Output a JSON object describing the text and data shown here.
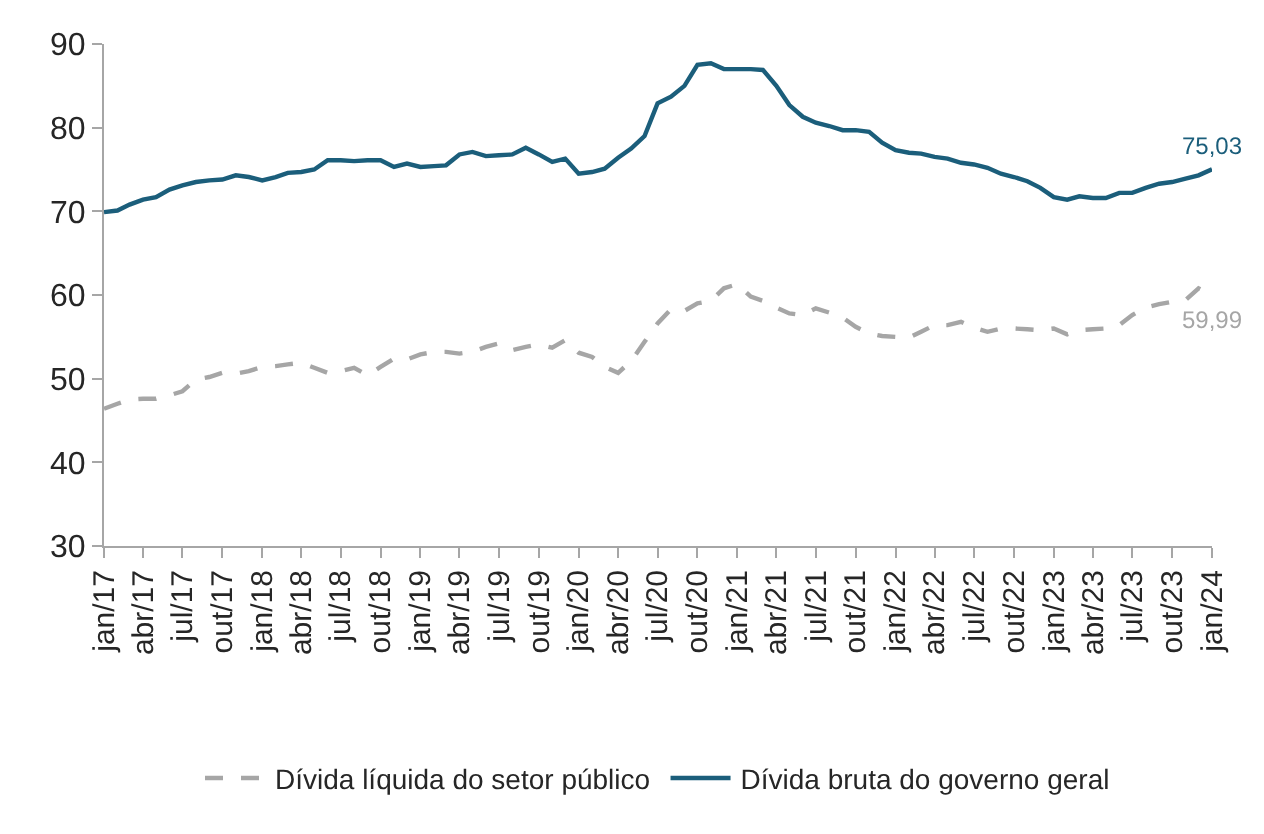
{
  "chart_data": {
    "type": "line",
    "x": [
      "2017-01",
      "2017-02",
      "2017-03",
      "2017-04",
      "2017-05",
      "2017-06",
      "2017-07",
      "2017-08",
      "2017-09",
      "2017-10",
      "2017-11",
      "2017-12",
      "2018-01",
      "2018-02",
      "2018-03",
      "2018-04",
      "2018-05",
      "2018-06",
      "2018-07",
      "2018-08",
      "2018-09",
      "2018-10",
      "2018-11",
      "2018-12",
      "2019-01",
      "2019-02",
      "2019-03",
      "2019-04",
      "2019-05",
      "2019-06",
      "2019-07",
      "2019-08",
      "2019-09",
      "2019-10",
      "2019-11",
      "2019-12",
      "2020-01",
      "2020-02",
      "2020-03",
      "2020-04",
      "2020-05",
      "2020-06",
      "2020-07",
      "2020-08",
      "2020-09",
      "2020-10",
      "2020-11",
      "2020-12",
      "2021-01",
      "2021-02",
      "2021-03",
      "2021-04",
      "2021-05",
      "2021-06",
      "2021-07",
      "2021-08",
      "2021-09",
      "2021-10",
      "2021-11",
      "2021-12",
      "2022-01",
      "2022-02",
      "2022-03",
      "2022-04",
      "2022-05",
      "2022-06",
      "2022-07",
      "2022-08",
      "2022-09",
      "2022-10",
      "2022-11",
      "2022-12",
      "2023-01",
      "2023-02",
      "2023-03",
      "2023-04",
      "2023-05",
      "2023-06",
      "2023-07",
      "2023-08",
      "2023-09",
      "2023-10",
      "2023-11",
      "2023-12",
      "2024-01"
    ],
    "series": [
      {
        "name": "Dívida líquida do setor público",
        "color": "#a6a6a6",
        "line_style": "dashed",
        "values": [
          46.4,
          47.0,
          47.5,
          47.6,
          47.6,
          48.0,
          48.5,
          49.9,
          50.2,
          50.7,
          50.6,
          50.9,
          51.4,
          51.5,
          51.7,
          51.9,
          51.3,
          50.7,
          50.9,
          51.3,
          50.4,
          51.4,
          52.4,
          52.3,
          52.9,
          53.2,
          53.2,
          53.0,
          53.2,
          53.8,
          54.2,
          53.4,
          53.8,
          54.1,
          53.7,
          54.6,
          53.1,
          52.6,
          51.4,
          50.7,
          52.1,
          54.4,
          56.6,
          58.3,
          58.1,
          59.0,
          59.3,
          60.8,
          61.3,
          59.8,
          59.3,
          58.5,
          57.8,
          57.6,
          58.4,
          57.9,
          57.3,
          56.2,
          55.4,
          55.1,
          55.0,
          54.9,
          55.6,
          56.4,
          56.4,
          56.8,
          56.1,
          55.6,
          56.0,
          56.0,
          55.9,
          55.8,
          56.0,
          55.3,
          55.8,
          55.9,
          56.0,
          56.4,
          57.6,
          58.5,
          58.9,
          59.2,
          59.4,
          60.8,
          59.99
        ]
      },
      {
        "name": "Dívida bruta do governo geral",
        "color": "#1b5e7b",
        "line_style": "solid",
        "values": [
          69.9,
          70.1,
          70.8,
          71.4,
          71.7,
          72.6,
          73.1,
          73.5,
          73.7,
          73.8,
          74.3,
          74.1,
          73.7,
          74.1,
          74.6,
          74.7,
          75.0,
          76.1,
          76.1,
          76.0,
          76.1,
          76.1,
          75.3,
          75.7,
          75.3,
          75.4,
          75.5,
          76.8,
          77.1,
          76.6,
          76.7,
          76.8,
          77.6,
          76.8,
          75.9,
          76.3,
          74.5,
          74.7,
          75.1,
          76.4,
          77.5,
          79.0,
          82.9,
          83.7,
          85.0,
          87.5,
          87.7,
          87.0,
          87.0,
          87.0,
          86.9,
          85.0,
          82.7,
          81.3,
          80.6,
          80.2,
          79.7,
          79.7,
          79.5,
          78.2,
          77.3,
          77.0,
          76.9,
          76.5,
          76.3,
          75.8,
          75.6,
          75.2,
          74.5,
          74.1,
          73.6,
          72.8,
          71.7,
          71.4,
          71.8,
          71.6,
          71.6,
          72.2,
          72.2,
          72.8,
          73.3,
          73.5,
          73.9,
          74.3,
          75.03
        ]
      }
    ],
    "annotations": [
      {
        "text": "75,03",
        "x": "2024-01",
        "y": 75.03
      },
      {
        "text": "59,99",
        "x": "2024-01",
        "y": 59.99
      }
    ],
    "xlim": [
      "2017-01",
      "2024-01"
    ],
    "xticks": [
      {
        "value": "2017-01",
        "label": "jan/17"
      },
      {
        "value": "2017-04",
        "label": "abr/17"
      },
      {
        "value": "2017-07",
        "label": "jul/17"
      },
      {
        "value": "2017-10",
        "label": "out/17"
      },
      {
        "value": "2018-01",
        "label": "jan/18"
      },
      {
        "value": "2018-04",
        "label": "abr/18"
      },
      {
        "value": "2018-07",
        "label": "jul/18"
      },
      {
        "value": "2018-10",
        "label": "out/18"
      },
      {
        "value": "2019-01",
        "label": "jan/19"
      },
      {
        "value": "2019-04",
        "label": "abr/19"
      },
      {
        "value": "2019-07",
        "label": "jul/19"
      },
      {
        "value": "2019-10",
        "label": "out/19"
      },
      {
        "value": "2020-01",
        "label": "jan/20"
      },
      {
        "value": "2020-04",
        "label": "abr/20"
      },
      {
        "value": "2020-07",
        "label": "jul/20"
      },
      {
        "value": "2020-10",
        "label": "out/20"
      },
      {
        "value": "2021-01",
        "label": "jan/21"
      },
      {
        "value": "2021-04",
        "label": "abr/21"
      },
      {
        "value": "2021-07",
        "label": "jul/21"
      },
      {
        "value": "2021-10",
        "label": "out/21"
      },
      {
        "value": "2022-01",
        "label": "jan/22"
      },
      {
        "value": "2022-04",
        "label": "abr/22"
      },
      {
        "value": "2022-07",
        "label": "jul/22"
      },
      {
        "value": "2022-10",
        "label": "out/22"
      },
      {
        "value": "2023-01",
        "label": "jan/23"
      },
      {
        "value": "2023-04",
        "label": "abr/23"
      },
      {
        "value": "2023-07",
        "label": "jul/23"
      },
      {
        "value": "2023-10",
        "label": "out/23"
      },
      {
        "value": "2024-01",
        "label": "jan/24"
      }
    ],
    "ylim": [
      30,
      90
    ],
    "yticks": [
      30,
      40,
      50,
      60,
      70,
      80,
      90
    ],
    "legend": "bottom"
  }
}
